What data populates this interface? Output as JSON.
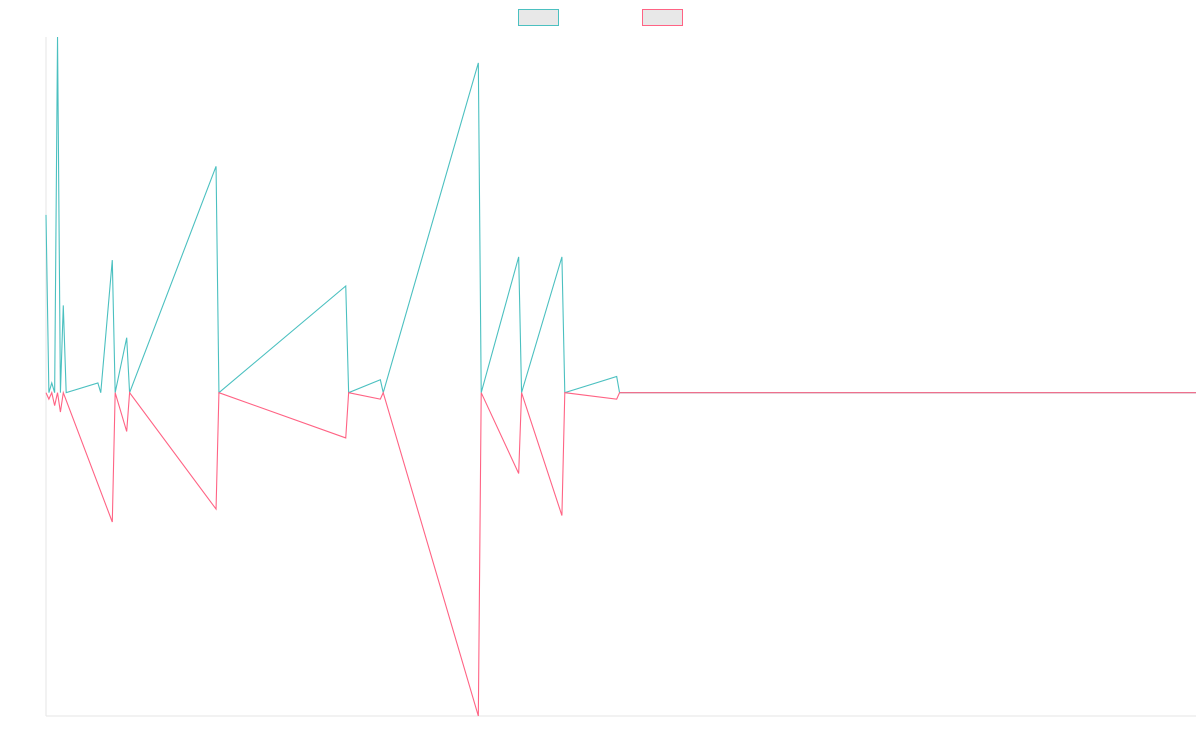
{
  "chart_data": {
    "type": "line",
    "title": "",
    "xlabel": "",
    "ylabel": "",
    "grid": false,
    "legend": {
      "placement": "top-center"
    },
    "ylim": [
      -100,
      110
    ],
    "n": 400,
    "series": [
      {
        "color": "#4bc0c0",
        "fill": "#e8e8e8",
        "points": [
          [
            0,
            55
          ],
          [
            1,
            0
          ],
          [
            2,
            3
          ],
          [
            3,
            0
          ],
          [
            4,
            110
          ],
          [
            5,
            0
          ],
          [
            6,
            27
          ],
          [
            7,
            0
          ],
          [
            18,
            3
          ],
          [
            19,
            0
          ],
          [
            23,
            41
          ],
          [
            24,
            0
          ],
          [
            28,
            17
          ],
          [
            29,
            0
          ],
          [
            59,
            70
          ],
          [
            60,
            0
          ],
          [
            104,
            33
          ],
          [
            105,
            0
          ],
          [
            116,
            4
          ],
          [
            117,
            0
          ],
          [
            150,
            102
          ],
          [
            151,
            0
          ],
          [
            164,
            42
          ],
          [
            165,
            0
          ],
          [
            179,
            42
          ],
          [
            180,
            0
          ],
          [
            198,
            5
          ],
          [
            199,
            0
          ],
          [
            399,
            0
          ]
        ]
      },
      {
        "color": "#ff6384",
        "fill": "#e8e8e8",
        "points": [
          [
            0,
            0
          ],
          [
            1,
            -2
          ],
          [
            2,
            0
          ],
          [
            3,
            -4
          ],
          [
            4,
            0
          ],
          [
            5,
            -6
          ],
          [
            6,
            0
          ],
          [
            23,
            -40
          ],
          [
            24,
            0
          ],
          [
            28,
            -12
          ],
          [
            29,
            0
          ],
          [
            59,
            -36
          ],
          [
            60,
            0
          ],
          [
            104,
            -14
          ],
          [
            105,
            0
          ],
          [
            116,
            -2
          ],
          [
            117,
            0
          ],
          [
            150,
            -100
          ],
          [
            151,
            0
          ],
          [
            164,
            -25
          ],
          [
            165,
            0
          ],
          [
            179,
            -38
          ],
          [
            180,
            0
          ],
          [
            198,
            -2
          ],
          [
            199,
            0
          ],
          [
            399,
            0
          ]
        ]
      }
    ]
  }
}
